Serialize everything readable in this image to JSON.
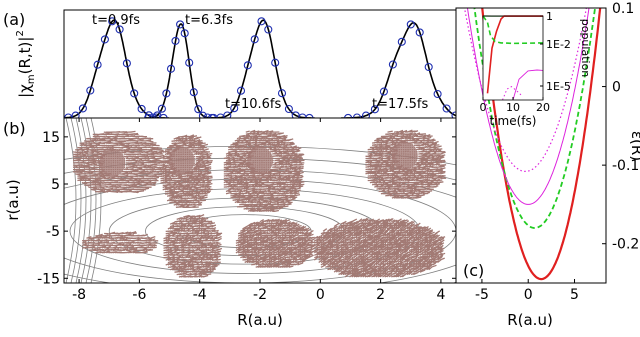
{
  "figure": {
    "panel_labels": [
      "(a)",
      "(b)",
      "(c)"
    ]
  },
  "chart_data": [
    {
      "panel": "(a)",
      "type": "line",
      "ylabel": "|χm(R,t)|²",
      "ylabel_parts": {
        "base": "|χ",
        "sub": "m",
        "mid": "(R,t)|",
        "sup": "2"
      },
      "xlim": [
        -8.5,
        4.5
      ],
      "ylim": [
        0,
        1
      ],
      "grid": false,
      "line_color": "#000000",
      "marker_color": "#1f2fb0",
      "peaks": [
        {
          "label": "t=0.9fs",
          "center": -6.9,
          "width": 0.45,
          "height": 0.93
        },
        {
          "label": "t=6.3fs",
          "center": -4.65,
          "width": 0.28,
          "height": 0.9
        },
        {
          "label": "t=10.6fs",
          "center": -1.95,
          "width": 0.42,
          "height": 0.93
        },
        {
          "label": "t=17.5fs",
          "center": 3.0,
          "width": 0.55,
          "height": 0.9
        }
      ]
    },
    {
      "panel": "(b)",
      "type": "scatter",
      "xlabel": "R(a.u)",
      "ylabel": "r(a.u)",
      "xlim": [
        -8.5,
        4.5
      ],
      "ylim": [
        -16,
        19
      ],
      "xticks": [
        -8,
        -6,
        -4,
        -2,
        0,
        2,
        4
      ],
      "yticks": [
        15,
        5,
        -5,
        -15
      ],
      "yticklabels": [
        "15",
        "5",
        "-5",
        "-15"
      ],
      "contour_color": "#808080",
      "arrow_color": "#a27a74",
      "contour_center": {
        "R": -2.5,
        "r": -5
      },
      "contour_semi_axes": [
        [
          2.2,
          3.5
        ],
        [
          3.3,
          5.2
        ],
        [
          4.5,
          7
        ],
        [
          5.8,
          9
        ],
        [
          7,
          11
        ],
        [
          8.4,
          13
        ],
        [
          9.8,
          15.5
        ],
        [
          11.2,
          18
        ]
      ],
      "packets": [
        {
          "label": "t=0.9fs",
          "upper": {
            "R": [
              -8.2,
              -5.3
            ],
            "r": [
              3,
              16
            ]
          },
          "upper_core": {
            "R": -6.9,
            "r": 9.5
          },
          "lower": {
            "R": [
              -7.9,
              -5.5
            ],
            "r": [
              -10,
              -5.5
            ]
          }
        },
        {
          "label": "t=6.3fs",
          "upper": {
            "R": [
              -5.3,
              -3.7
            ],
            "r": [
              0,
              15
            ]
          },
          "upper_core": {
            "R": -4.6,
            "r": 10
          },
          "lower": {
            "R": [
              -5.2,
              -3.4
            ],
            "r": [
              -15,
              -2
            ]
          }
        },
        {
          "label": "t=10.6fs",
          "upper": {
            "R": [
              -3.2,
              -0.7
            ],
            "r": [
              -1,
              16
            ]
          },
          "upper_core": {
            "R": -2,
            "r": 10
          },
          "lower": {
            "R": [
              -2.8,
              -0.3
            ],
            "r": [
              -13,
              -3
            ]
          }
        },
        {
          "label": "t=17.5fs",
          "upper": {
            "R": [
              1.5,
              4.0
            ],
            "r": [
              2,
              16
            ]
          },
          "upper_core": {
            "R": 2.8,
            "r": 11
          },
          "lower": {
            "R": [
              -0.2,
              4.0
            ],
            "r": [
              -15,
              -3
            ]
          }
        }
      ]
    },
    {
      "panel": "(c)",
      "type": "line",
      "xlabel": "R(a.u)",
      "ylabel": "ε(R)",
      "xlim": [
        -7.8,
        8.4
      ],
      "ylim": [
        -0.25,
        0.1
      ],
      "xticks": [
        -5,
        0,
        5
      ],
      "yticks": [
        0.1,
        0,
        -0.1,
        -0.2
      ],
      "yticklabels": [
        "0.1",
        "0",
        "-0.1",
        "-0.2"
      ],
      "series": [
        {
          "style": "solid",
          "color": "#e02020",
          "width": 2.2,
          "min_R": 1.4,
          "min_eps": -0.245,
          "curv": 0.0085
        },
        {
          "style": "dashed",
          "color": "#22cc22",
          "width": 1.8,
          "min_R": 0.7,
          "min_eps": -0.18,
          "curv": 0.0066
        },
        {
          "style": "solid",
          "color": "#dd22dd",
          "width": 1.0,
          "min_R": 0.0,
          "min_eps": -0.15,
          "curv": 0.0058
        },
        {
          "style": "dotted",
          "color": "#dd22dd",
          "width": 1.2,
          "min_R": -0.3,
          "min_eps": -0.108,
          "curv": 0.0048
        }
      ],
      "inset": {
        "xlabel": "time(fs)",
        "ylabel": "population",
        "xlim": [
          0,
          20
        ],
        "xticks": [
          0,
          10,
          20
        ],
        "ylog": true,
        "ylim": [
          1e-06,
          1
        ],
        "yticklabels": [
          "1",
          "1E-2",
          "1E-5"
        ],
        "ytickvalues": [
          1,
          0.01,
          1e-05
        ],
        "series": [
          {
            "style": "solid",
            "color": "#3a7a3a",
            "width": 1.2,
            "points": [
              [
                0,
                1
              ],
              [
                3,
                0.99
              ],
              [
                7,
                0.99
              ],
              [
                20,
                0.99
              ]
            ]
          },
          {
            "style": "solid",
            "color": "#e02020",
            "width": 1.6,
            "points": [
              [
                1.5,
                3e-06
              ],
              [
                3,
                0.005
              ],
              [
                4.5,
                0.08
              ],
              [
                6,
                0.6
              ],
              [
                7,
                0.99
              ],
              [
                20,
                0.99
              ]
            ]
          },
          {
            "style": "dashed",
            "color": "#22cc22",
            "width": 1.6,
            "points": [
              [
                0,
                1
              ],
              [
                1.5,
                0.35
              ],
              [
                2.5,
                0.04
              ],
              [
                4,
                0.015
              ],
              [
                6,
                0.012
              ],
              [
                10,
                0.011
              ],
              [
                20,
                0.012
              ]
            ]
          },
          {
            "style": "solid",
            "color": "#dd22dd",
            "width": 0.9,
            "points": [
              [
                10,
                1e-06
              ],
              [
                12,
                3e-05
              ],
              [
                15,
                0.00012
              ],
              [
                18,
                0.00014
              ],
              [
                20,
                0.00013
              ]
            ]
          },
          {
            "style": "dotted",
            "color": "#dd22dd",
            "width": 1.0,
            "points": [
              [
                6.5,
                1e-06
              ],
              [
                8,
                6e-06
              ],
              [
                9.5,
                9e-06
              ],
              [
                11,
                5e-06
              ],
              [
                13,
                2e-06
              ]
            ]
          }
        ]
      }
    }
  ]
}
